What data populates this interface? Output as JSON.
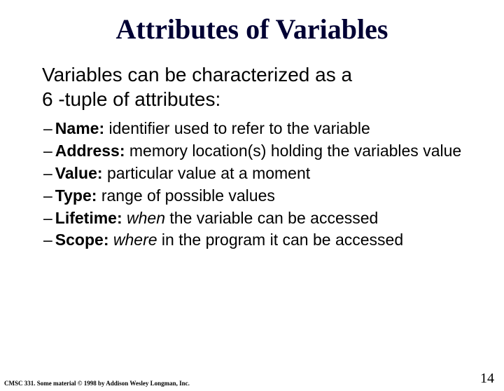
{
  "title": "Attributes of Variables",
  "intro_line1": "Variables can be characterized as a",
  "intro_line2": "6 -tuple of attributes:",
  "bullets": [
    {
      "label": "Name:",
      "rest": " identifier used to refer to the variable"
    },
    {
      "label": "Address:",
      "rest": " memory location(s) holding the variables value"
    },
    {
      "label": "Value:",
      "rest": " particular value at a moment"
    },
    {
      "label": "Type:",
      "rest": " range of possible values"
    },
    {
      "label": "Lifetime:",
      "italic": "when",
      "rest2": " the variable can be accessed"
    },
    {
      "label": "Scope:",
      "spacer": "   ",
      "italic": "where",
      "rest2": " in the program it can be accessed"
    }
  ],
  "footer_left": "CMSC 331. Some material © 1998 by Addison Wesley Longman, Inc.",
  "page_number": "14",
  "colors": {
    "title_color": "#000033",
    "bg": "#ffffff"
  }
}
